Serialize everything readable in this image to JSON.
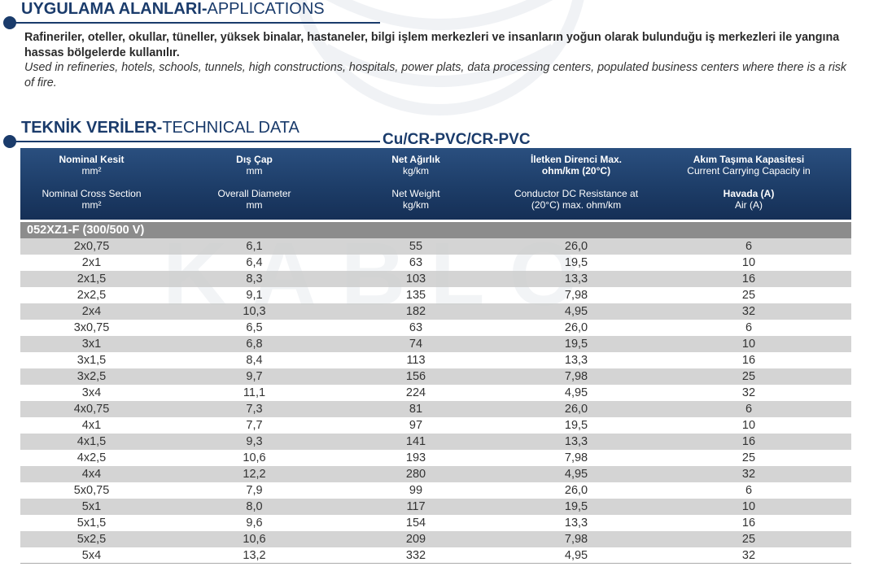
{
  "applications": {
    "title_bold": "UYGULAMA ALANLARI-",
    "title_regular": "APPLICATIONS",
    "text_tr": "Rafineriler, oteller, okullar, tüneller, yüksek binalar, hastaneler, bilgi işlem merkezleri ve insanların yoğun olarak bulunduğu iş merkezleri ile yangına hassas bölgelerde kullanılır.",
    "text_en": "Used in refineries, hotels, schools, tunnels, high constructions, hospitals, power plats, data processing centers, populated business centers where there is a risk of fire."
  },
  "technical": {
    "title_bold": "TEKNİK VERİLER-",
    "title_regular": "TECHNICAL DATA",
    "construction": "Cu/CR-PVC/CR-PVC"
  },
  "table": {
    "columns": [
      {
        "tr_label": "Nominal Kesit",
        "tr_unit": "mm²",
        "en_label": "Nominal Cross Section",
        "en_unit": "mm²"
      },
      {
        "tr_label": "Dış Çap",
        "tr_unit": "mm",
        "en_label": "Overall Diameter",
        "en_unit": "mm"
      },
      {
        "tr_label": "Net Ağırlık",
        "tr_unit": "kg/km",
        "en_label": "Net Weight",
        "en_unit": "kg/km"
      },
      {
        "tr_label": "İletken Direnci Max.",
        "tr_unit": "ohm/km (20°C)",
        "en_label": "Conductor DC Resistance at",
        "en_unit": "(20°C) max. ohm/km"
      },
      {
        "tr_label": "Akım Taşıma Kapasitesi",
        "tr_unit": "Current Carrying Capacity in",
        "en_label": "Havada (A)",
        "en_unit": "Air (A)"
      }
    ],
    "group_label": "052XZ1-F (300/500 V)",
    "rows": [
      [
        "2x0,75",
        "6,1",
        "55",
        "26,0",
        "6"
      ],
      [
        "2x1",
        "6,4",
        "63",
        "19,5",
        "10"
      ],
      [
        "2x1,5",
        "8,3",
        "103",
        "13,3",
        "16"
      ],
      [
        "2x2,5",
        "9,1",
        "135",
        "7,98",
        "25"
      ],
      [
        "2x4",
        "10,3",
        "182",
        "4,95",
        "32"
      ],
      [
        "3x0,75",
        "6,5",
        "63",
        "26,0",
        "6"
      ],
      [
        "3x1",
        "6,8",
        "74",
        "19,5",
        "10"
      ],
      [
        "3x1,5",
        "8,4",
        "113",
        "13,3",
        "16"
      ],
      [
        "3x2,5",
        "9,7",
        "156",
        "7,98",
        "25"
      ],
      [
        "3x4",
        "11,1",
        "224",
        "4,95",
        "32"
      ],
      [
        "4x0,75",
        "7,3",
        "81",
        "26,0",
        "6"
      ],
      [
        "4x1",
        "7,7",
        "97",
        "19,5",
        "10"
      ],
      [
        "4x1,5",
        "9,3",
        "141",
        "13,3",
        "16"
      ],
      [
        "4x2,5",
        "10,6",
        "193",
        "7,98",
        "25"
      ],
      [
        "4x4",
        "12,2",
        "280",
        "4,95",
        "32"
      ],
      [
        "5x0,75",
        "7,9",
        "99",
        "26,0",
        "6"
      ],
      [
        "5x1",
        "8,0",
        "117",
        "19,5",
        "10"
      ],
      [
        "5x1,5",
        "9,6",
        "154",
        "13,3",
        "16"
      ],
      [
        "5x2,5",
        "10,6",
        "209",
        "7,98",
        "25"
      ],
      [
        "5x4",
        "13,2",
        "332",
        "4,95",
        "32"
      ]
    ]
  },
  "colors": {
    "brand_navy": "#1a3b6b",
    "header_gradient_top": "#2a4f7f",
    "header_gradient_bottom": "#152f56",
    "group_bar": "#8c8c8c",
    "stripe": "#cdcdcd"
  }
}
